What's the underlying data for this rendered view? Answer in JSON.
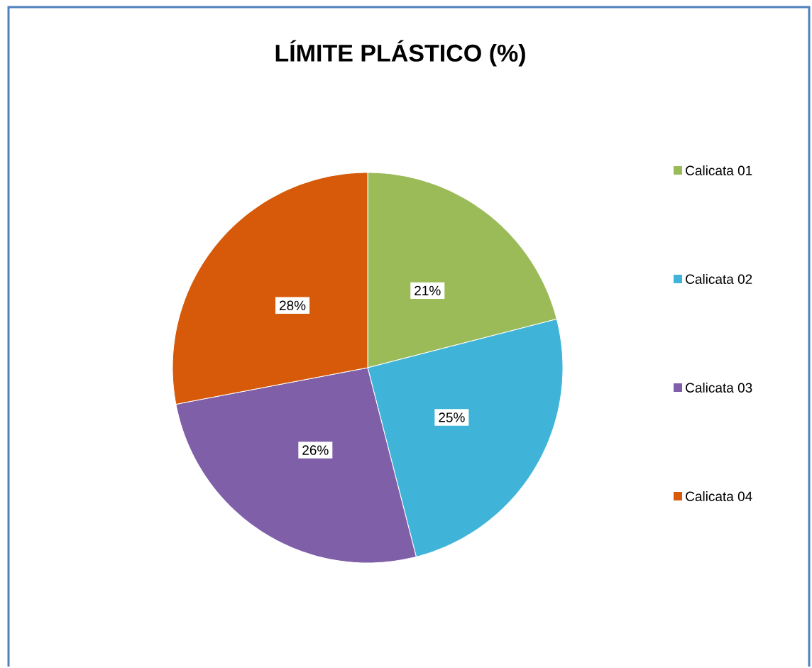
{
  "chart_data": {
    "type": "pie",
    "title": "LÍMITE PLÁSTICO (%)",
    "categories": [
      "Calicata 01",
      "Calicata 02",
      "Calicata 03",
      "Calicata 04"
    ],
    "values": [
      21,
      25,
      26,
      28
    ],
    "colors": [
      "#9bbb59",
      "#40b4d8",
      "#7f5fa8",
      "#d65a0a"
    ],
    "value_labels": [
      "21%",
      "25%",
      "26%",
      "28%"
    ],
    "legend": "right"
  }
}
